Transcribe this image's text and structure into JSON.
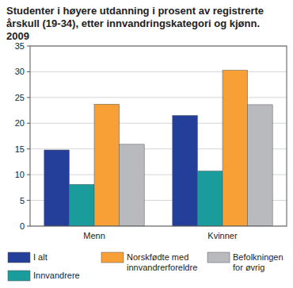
{
  "chart_data": {
    "type": "bar",
    "title": "Studenter i høyere utdanning i prosent av registrerte årskull (19-34), etter innvandringskategori og kjønn. 2009",
    "categories": [
      "Menn",
      "Kvinner"
    ],
    "series": [
      {
        "name": "I alt",
        "color": "#233f99",
        "values": [
          14.8,
          21.5
        ]
      },
      {
        "name": "Innvandrere",
        "color": "#1a9c9c",
        "values": [
          8.1,
          10.7
        ]
      },
      {
        "name": "Norskfødte med innvandrerforeldre",
        "color": "#f8a036",
        "values": [
          23.7,
          30.3
        ]
      },
      {
        "name": "Befolkningen for øvrig",
        "color": "#b9babe",
        "values": [
          15.9,
          23.6
        ]
      }
    ],
    "ylim": [
      0,
      35
    ],
    "yticks": [
      0,
      5,
      10,
      15,
      20,
      25,
      30,
      35
    ],
    "grid": true,
    "legend": "bottom"
  }
}
